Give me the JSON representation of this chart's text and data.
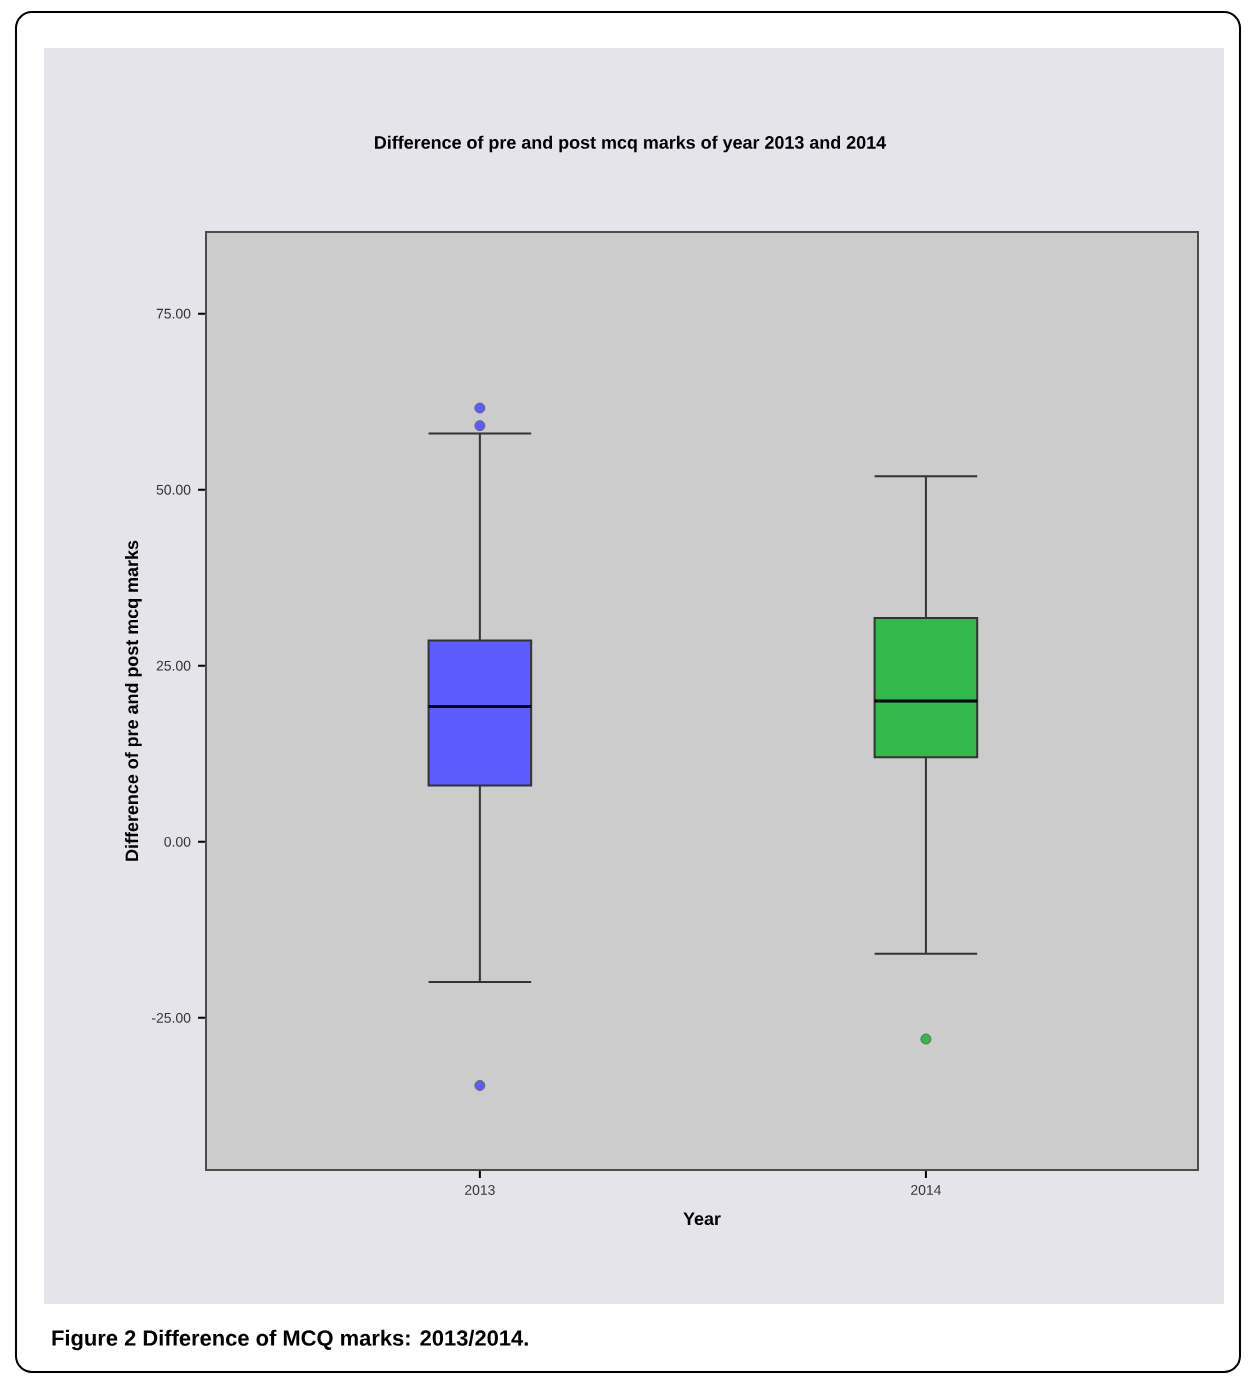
{
  "chart_data": {
    "type": "box",
    "title": "Difference of pre and post mcq marks of year 2013 and 2014",
    "xlabel": "Year",
    "ylabel": "Difference of pre and post mcq marks",
    "categories": [
      "2013",
      "2014"
    ],
    "series": [
      {
        "color": "#5b5bff",
        "boxes": [
          {
            "low": -19.9,
            "q1": 8.0,
            "median": 19.2,
            "q3": 28.6,
            "high": 58.0,
            "outliers": [
              61.6,
              59.1,
              -34.6
            ]
          },
          null
        ]
      },
      {
        "color": "#33b84a",
        "boxes": [
          null,
          {
            "low": -15.9,
            "q1": 12.0,
            "median": 20.0,
            "q3": 31.8,
            "high": 51.9,
            "outliers": [
              -28.0
            ]
          }
        ]
      }
    ],
    "ylim": [
      -46.6,
      86.6
    ],
    "yticks": [
      {
        "value": -25,
        "label": "-25.00"
      },
      {
        "value": 0,
        "label": "0.00"
      },
      {
        "value": 25,
        "label": "25.00"
      },
      {
        "value": 50,
        "label": "50.00"
      },
      {
        "value": 75,
        "label": "75.00"
      }
    ],
    "grid": false,
    "marker": "circle",
    "annotations": [
      "Figure 2 Difference of MCQ marks: 2013/2014."
    ]
  }
}
